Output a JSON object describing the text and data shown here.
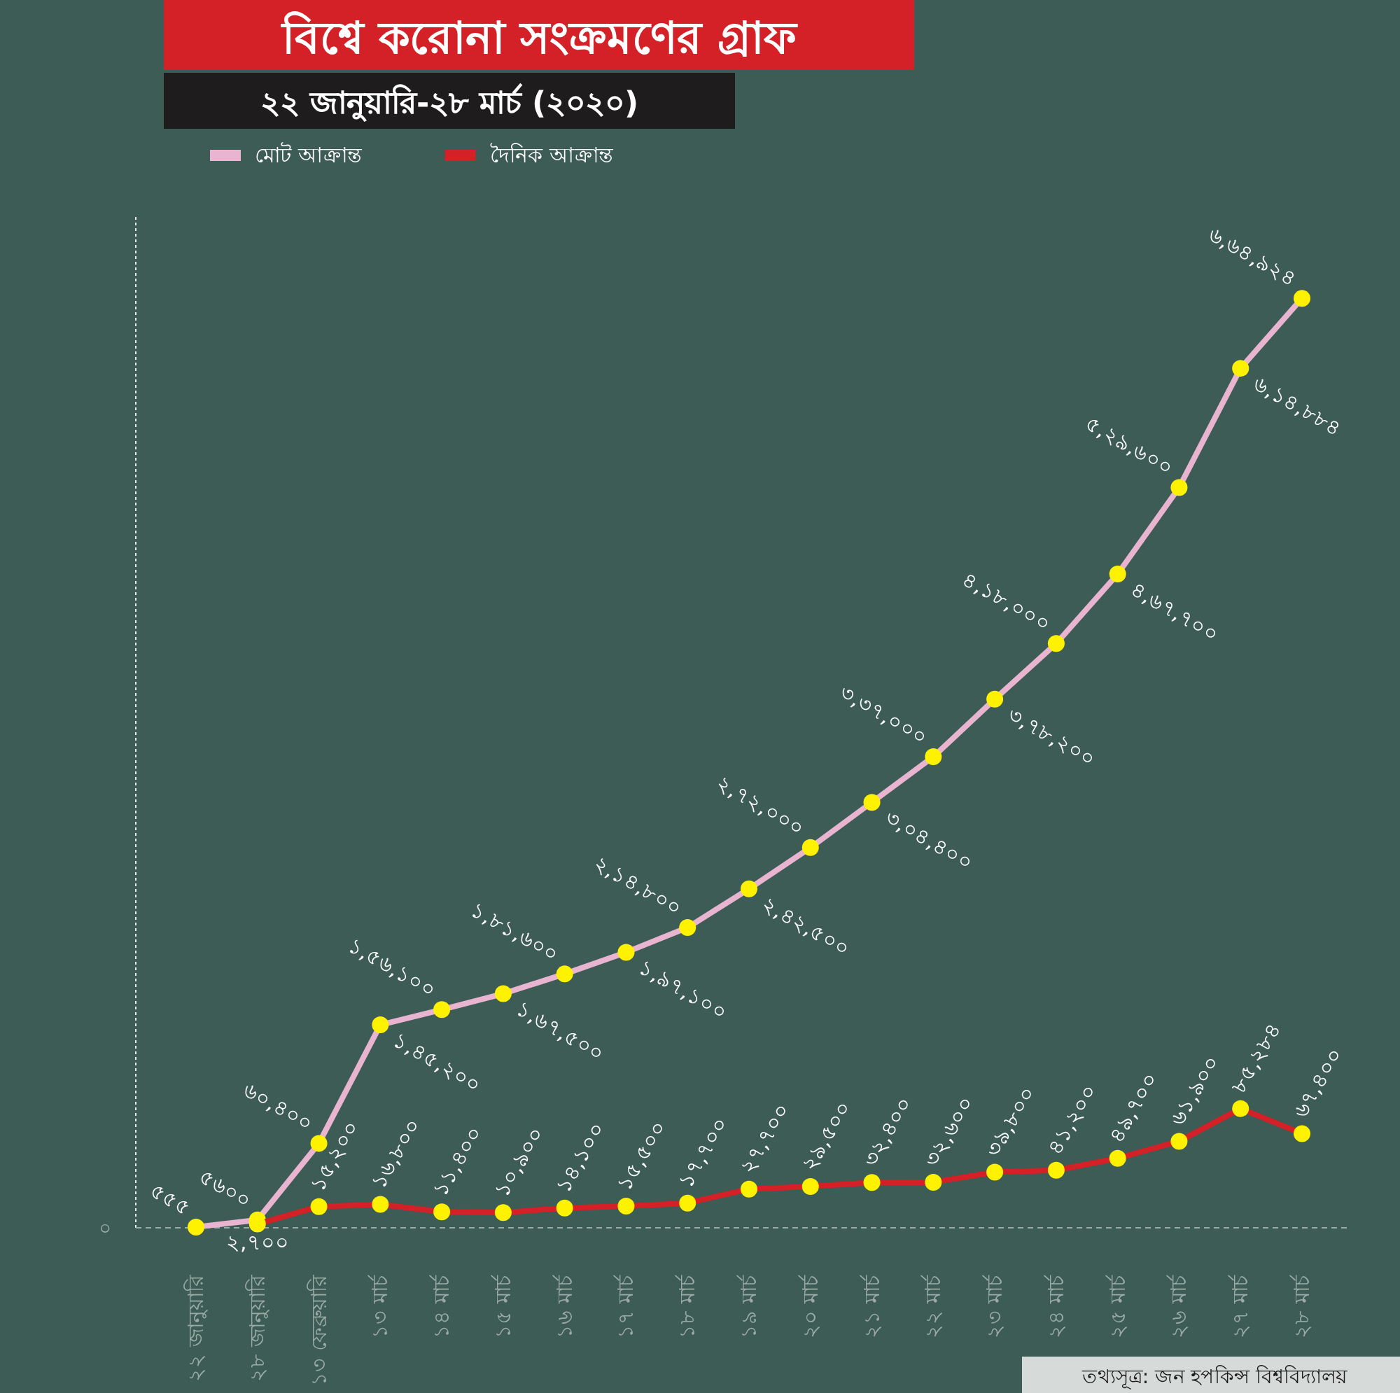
{
  "chart_data": {
    "type": "line",
    "title": "বিশ্বে করোনা সংক্রমণের গ্রাফ",
    "subtitle": "২২ জানুয়ারি-২৮ মার্চ (২০২০)",
    "categories": [
      "২২ জানুয়ারি",
      "২৮ জানুয়ারি",
      "১৩ ফেব্রুয়ারি",
      "১৩ মার্চ",
      "১৪ মার্চ",
      "১৫ মার্চ",
      "১৬ মার্চ",
      "১৭ মার্চ",
      "১৮ মার্চ",
      "১৯ মার্চ",
      "২০ মার্চ",
      "২১ মার্চ",
      "২২ মার্চ",
      "২৩ মার্চ",
      "২৪ মার্চ",
      "২৫ মার্চ",
      "২৬ মার্চ",
      "২৭ মার্চ",
      "২৮ মার্চ"
    ],
    "series": [
      {
        "name": "মোট আক্রান্ত",
        "color": "#e8b4d0",
        "values": [
          555,
          5600,
          60400,
          145200,
          156100,
          167500,
          181600,
          197100,
          214800,
          242500,
          272000,
          304400,
          337000,
          378200,
          418000,
          467700,
          529600,
          614884,
          664924
        ],
        "value_labels": [
          "৫৫৫",
          "৫৬০০",
          "৬০,৪০০",
          "১,৪৫,২০০",
          "১,৫৬,১০০",
          "১,৬৭,৫০০",
          "১,৮১,৬০০",
          "১,৯৭,১০০",
          "২,১৪,৮০০",
          "২,৪২,৫০০",
          "২,৭২,০০০",
          "৩,০৪,৪০০",
          "৩,৩৭,০০০",
          "৩,৭৮,২০০",
          "৪,১৮,০০০",
          "৪,৬৭,৭০০",
          "৫,২৯,৬০০",
          "৬,১৪,৮৮৪",
          "৬,৬৪,৯২৪"
        ]
      },
      {
        "name": "দৈনিক আক্রান্ত",
        "color": "#d42027",
        "values": [
          null,
          2700,
          15200,
          16800,
          11400,
          10900,
          14100,
          15500,
          17700,
          27700,
          29500,
          32400,
          32600,
          39800,
          41200,
          49700,
          61900,
          85284,
          67400
        ],
        "value_labels": [
          null,
          "২,৭০০",
          "১৫,২০০",
          "১৬,৮০০",
          "১১,৪০০",
          "১০,৯০০",
          "১৪,১০০",
          "১৫,৫০০",
          "১৭,৭০০",
          "২৭,৭০০",
          "২৯,৫০০",
          "৩২,৪০০",
          "৩২,৬০০",
          "৩৯,৮০০",
          "৪১,২০০",
          "৪৯,৭০০",
          "৬১,৯০০",
          "৮৫,২৮৪",
          "৬৭,৪০০"
        ]
      }
    ],
    "legend": "top left",
    "marker": "circle",
    "annotations": [
      "০",
      "তথ্যসূত্র: জন হপকিন্স বিশ্ববিদ্যালয়"
    ]
  }
}
